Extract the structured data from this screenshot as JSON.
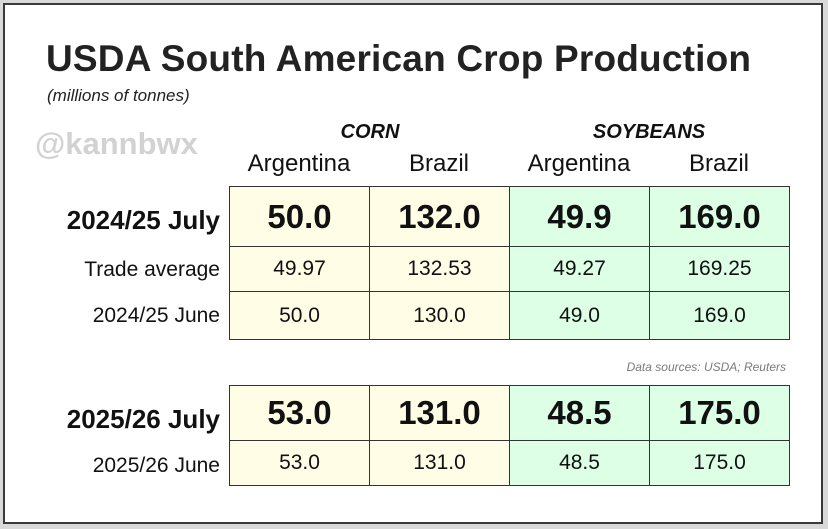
{
  "title": "USDA South American Crop Production",
  "subtitle": "(millions of tonnes)",
  "watermark": "@kannbwx",
  "source": "Data sources: USDA; Reuters",
  "colors": {
    "corn_fill": "#fffde6",
    "soybeans_fill": "#dcffe6"
  },
  "chart_data": {
    "type": "table",
    "groups": [
      {
        "name": "CORN",
        "columns": [
          "Argentina",
          "Brazil"
        ]
      },
      {
        "name": "SOYBEANS",
        "columns": [
          "Argentina",
          "Brazil"
        ]
      }
    ],
    "columns": [
      "Argentina",
      "Brazil",
      "Argentina",
      "Brazil"
    ],
    "tables": [
      {
        "rows": [
          {
            "label": "2024/25 July",
            "emphasis": true,
            "values": [
              "50.0",
              "132.0",
              "49.9",
              "169.0"
            ]
          },
          {
            "label": "Trade average",
            "emphasis": false,
            "values": [
              "49.97",
              "132.53",
              "49.27",
              "169.25"
            ]
          },
          {
            "label": "2024/25 June",
            "emphasis": false,
            "values": [
              "50.0",
              "130.0",
              "49.0",
              "169.0"
            ]
          }
        ]
      },
      {
        "rows": [
          {
            "label": "2025/26 July",
            "emphasis": true,
            "values": [
              "53.0",
              "131.0",
              "48.5",
              "175.0"
            ]
          },
          {
            "label": "2025/26 June",
            "emphasis": false,
            "values": [
              "53.0",
              "131.0",
              "48.5",
              "175.0"
            ]
          }
        ]
      }
    ]
  }
}
